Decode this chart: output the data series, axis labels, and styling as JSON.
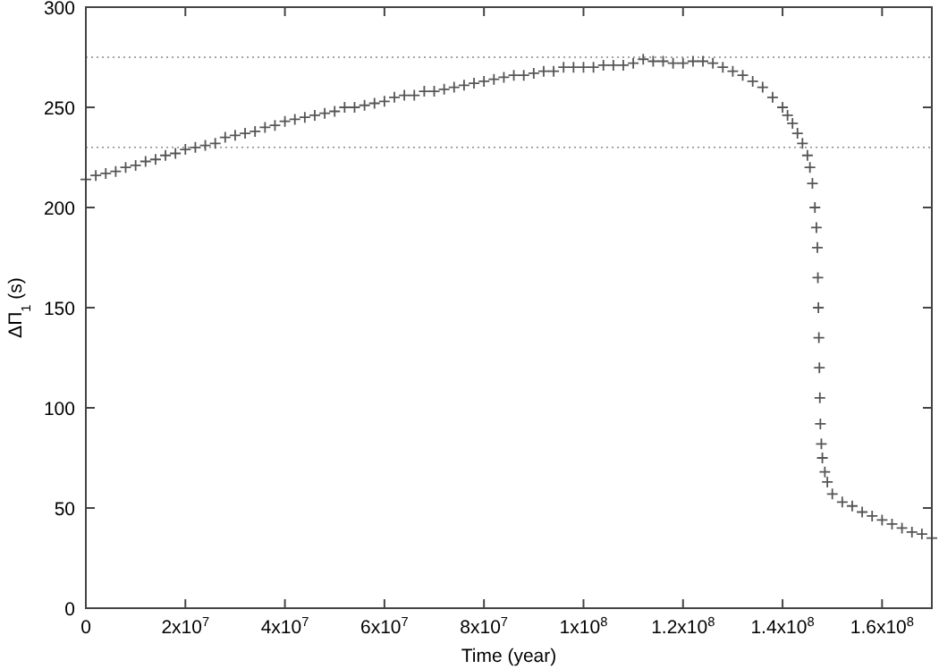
{
  "chart_data": {
    "type": "scatter",
    "xlabel": "Time (year)",
    "ylabel": "ΔΠ$_{1}$ (s)",
    "marker": "cross",
    "grid": false,
    "xlim": [
      0,
      170000000
    ],
    "ylim": [
      0,
      300
    ],
    "xticks": [
      0,
      {
        "value": 20000000,
        "label": "2x10$^{7}$"
      },
      {
        "value": 40000000,
        "label": "4x10$^{7}$"
      },
      {
        "value": 60000000,
        "label": "6x10$^{7}$"
      },
      {
        "value": 80000000,
        "label": "8x10$^{7}$"
      },
      {
        "value": 100000000,
        "label": "1x10$^{8}$"
      },
      {
        "value": 120000000,
        "label": "1.2x10$^{8}$"
      },
      {
        "value": 140000000,
        "label": "1.4x10$^{8}$"
      },
      {
        "value": 160000000,
        "label": "1.6x10$^{8}$"
      }
    ],
    "yticks": [
      0,
      50,
      100,
      150,
      200,
      250,
      300
    ],
    "ref_lines": [
      {
        "axis": "y",
        "value": 275,
        "color": "#888888",
        "line_style": "dotted"
      },
      {
        "axis": "y",
        "value": 230,
        "color": "#888888",
        "line_style": "dotted"
      }
    ],
    "series": [
      {
        "color": "#555555",
        "x": [
          0,
          2000000,
          4000000,
          6000000,
          8000000,
          10000000,
          12000000,
          14000000,
          16000000,
          18000000,
          20000000,
          22000000,
          24000000,
          26000000,
          28000000,
          30000000,
          32000000,
          34000000,
          36000000,
          38000000,
          40000000,
          42000000,
          44000000,
          46000000,
          48000000,
          50000000,
          52000000,
          54000000,
          56000000,
          58000000,
          60000000,
          62000000,
          64000000,
          66000000,
          68000000,
          70000000,
          72000000,
          74000000,
          76000000,
          78000000,
          80000000,
          82000000,
          84000000,
          86000000,
          88000000,
          90000000,
          92000000,
          94000000,
          96000000,
          98000000,
          100000000,
          102000000,
          104000000,
          106000000,
          108000000,
          110000000,
          112000000,
          114000000,
          116000000,
          118000000,
          120000000,
          122000000,
          124000000,
          126000000,
          128000000,
          130000000,
          132000000,
          134000000,
          136000000,
          138000000,
          140000000,
          141000000,
          142000000,
          143000000,
          144000000,
          145000000,
          145500000,
          146000000,
          146500000,
          146800000,
          147000000,
          147100000,
          147200000,
          147300000,
          147400000,
          147500000,
          147600000,
          147800000,
          148000000,
          148500000,
          149000000,
          150000000,
          152000000,
          154000000,
          156000000,
          158000000,
          160000000,
          162000000,
          164000000,
          166000000,
          168000000,
          170000000
        ],
        "values": [
          214,
          216,
          217,
          218,
          220,
          221,
          223,
          224,
          226,
          227,
          229,
          230,
          231,
          232,
          235,
          236,
          237,
          238,
          240,
          241,
          243,
          244,
          245,
          246,
          247,
          248,
          250,
          250,
          251,
          252,
          253,
          255,
          256,
          256,
          258,
          258,
          259,
          260,
          261,
          262,
          263,
          264,
          265,
          266,
          266,
          267,
          268,
          268,
          270,
          270,
          270,
          270,
          271,
          271,
          271,
          272,
          274,
          273,
          273,
          272,
          272,
          273,
          273,
          272,
          270,
          268,
          266,
          263,
          260,
          255,
          250,
          246,
          242,
          237,
          232,
          226,
          220,
          212,
          200,
          190,
          180,
          165,
          150,
          135,
          120,
          105,
          92,
          82,
          75,
          68,
          63,
          57,
          53,
          51,
          48,
          46,
          44,
          42,
          40,
          38,
          37,
          35
        ]
      }
    ]
  }
}
